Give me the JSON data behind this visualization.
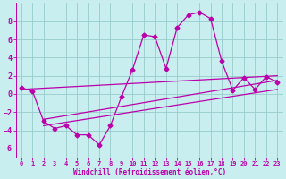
{
  "xlabel": "Windchill (Refroidissement éolien,°C)",
  "xlim": [
    -0.5,
    23.5
  ],
  "ylim": [
    -7,
    10
  ],
  "yticks": [
    -6,
    -4,
    -2,
    0,
    2,
    4,
    6,
    8
  ],
  "xticks": [
    0,
    1,
    2,
    3,
    4,
    5,
    6,
    7,
    8,
    9,
    10,
    11,
    12,
    13,
    14,
    15,
    16,
    17,
    18,
    19,
    20,
    21,
    22,
    23
  ],
  "background_color": "#c8eef0",
  "grid_color": "#99cccc",
  "line_color": "#bb00aa",
  "series": {
    "line1": {
      "x": [
        0,
        1,
        2,
        3,
        4,
        5,
        6,
        7,
        8,
        9,
        10,
        11,
        12,
        13,
        14,
        15,
        16,
        17,
        18,
        19,
        20,
        21,
        22,
        23
      ],
      "y": [
        0.7,
        0.3,
        -3.0,
        -3.8,
        -3.5,
        -4.5,
        -4.5,
        -5.6,
        -3.5,
        -0.3,
        2.7,
        6.5,
        6.3,
        2.8,
        7.3,
        8.7,
        9.0,
        8.3,
        3.6,
        0.4,
        1.8,
        0.5,
        1.9,
        1.3
      ]
    },
    "line2": {
      "x": [
        0,
        23
      ],
      "y": [
        0.5,
        2.0
      ]
    },
    "line3": {
      "x": [
        2,
        23
      ],
      "y": [
        -2.8,
        1.5
      ]
    },
    "line4": {
      "x": [
        2,
        23
      ],
      "y": [
        -3.5,
        0.5
      ]
    }
  },
  "marker": "D",
  "markersize": 2.5,
  "linewidth": 0.9
}
